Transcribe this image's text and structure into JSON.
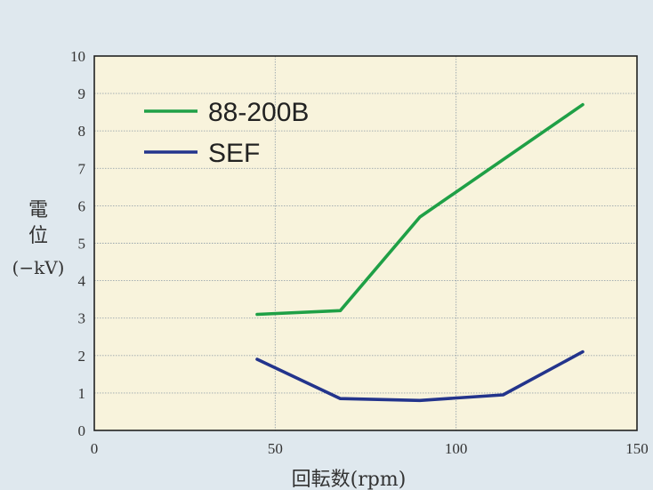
{
  "chart_data": {
    "type": "line",
    "title": "",
    "xlabel": "回転数(rpm)",
    "ylabel_lines": [
      "電",
      "位",
      "(−kV)"
    ],
    "xlim": [
      0,
      150
    ],
    "ylim": [
      0,
      10
    ],
    "xticks": [
      0,
      50,
      100,
      150
    ],
    "yticks": [
      0,
      1,
      2,
      3,
      4,
      5,
      6,
      7,
      8,
      9,
      10
    ],
    "grid": true,
    "legend_position": "top-left",
    "series": [
      {
        "name": "88-200B",
        "color": "#1fa046",
        "x": [
          45,
          68,
          90,
          135
        ],
        "y": [
          3.1,
          3.2,
          5.7,
          8.7
        ]
      },
      {
        "name": "SEF",
        "color": "#23348c",
        "x": [
          45,
          68,
          90,
          113,
          135
        ],
        "y": [
          1.9,
          0.85,
          0.8,
          0.95,
          2.1
        ]
      }
    ],
    "colors": {
      "plot_background": "#f8f3dc",
      "page_background": "#dfe8ee",
      "axis": "#222222",
      "grid": "#9aa6ad"
    }
  }
}
